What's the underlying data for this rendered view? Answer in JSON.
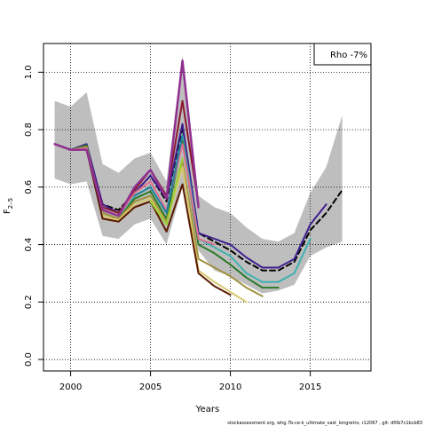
{
  "chart_data": {
    "type": "line",
    "title": "",
    "xlabel": "Years",
    "ylabel": "F2-5",
    "ylabel_main": "F",
    "ylabel_sub": "2–5",
    "xlim": [
      1998.3,
      2018.8
    ],
    "ylim": [
      -0.04,
      1.1
    ],
    "x_ticks": [
      2000,
      2005,
      2010,
      2015
    ],
    "y_ticks": [
      0.0,
      0.2,
      0.4,
      0.6,
      0.8,
      1.0
    ],
    "x_tick_labels": [
      "2000",
      "2005",
      "2010",
      "2015"
    ],
    "y_tick_labels": [
      "0.0",
      "0.2",
      "0.4",
      "0.6",
      "0.8",
      "1.0"
    ],
    "grid": true,
    "legend": {
      "position": "top-right",
      "text": "Rho -7%"
    },
    "footer": "stockassessment.org, whg.7b-ce-k_ultimate_vast_longretro, r12067 , git: df0b7c1bcb83",
    "confidence_band": {
      "x": [
        1999,
        2000,
        2001,
        2002,
        2003,
        2004,
        2005,
        2006,
        2007,
        2008,
        2009,
        2010,
        2011,
        2012,
        2013,
        2014,
        2015,
        2016,
        2017
      ],
      "upper": [
        0.9,
        0.88,
        0.93,
        0.68,
        0.65,
        0.7,
        0.72,
        0.62,
        1.06,
        0.57,
        0.53,
        0.51,
        0.46,
        0.42,
        0.41,
        0.44,
        0.58,
        0.67,
        0.85
      ],
      "lower": [
        0.63,
        0.61,
        0.62,
        0.43,
        0.42,
        0.47,
        0.49,
        0.4,
        0.6,
        0.38,
        0.31,
        0.29,
        0.26,
        0.23,
        0.24,
        0.26,
        0.36,
        0.39,
        0.41
      ],
      "color": "#bebebe"
    },
    "series": [
      {
        "color": "#000000",
        "dashed": true,
        "width": 2,
        "x": [
          1999,
          2000,
          2001,
          2002,
          2003,
          2004,
          2005,
          2006,
          2007,
          2008,
          2009,
          2010,
          2011,
          2012,
          2013,
          2014,
          2015,
          2016,
          2017
        ],
        "y": [
          0.75,
          0.73,
          0.74,
          0.54,
          0.52,
          0.58,
          0.64,
          0.55,
          0.81,
          0.44,
          0.41,
          0.38,
          0.34,
          0.31,
          0.31,
          0.34,
          0.45,
          0.51,
          0.59
        ]
      },
      {
        "color": "#3f1f8f",
        "dashed": false,
        "width": 2,
        "x": [
          1999,
          2000,
          2001,
          2002,
          2003,
          2004,
          2005,
          2006,
          2007,
          2008,
          2009,
          2010,
          2011,
          2012,
          2013,
          2014,
          2015,
          2016
        ],
        "y": [
          0.75,
          0.73,
          0.75,
          0.54,
          0.51,
          0.58,
          0.64,
          0.56,
          0.82,
          0.44,
          0.42,
          0.4,
          0.355,
          0.32,
          0.32,
          0.35,
          0.47,
          0.54
        ]
      },
      {
        "color": "#40b0b0",
        "dashed": false,
        "width": 2,
        "x": [
          1999,
          2000,
          2001,
          2002,
          2003,
          2004,
          2005,
          2006,
          2007,
          2008,
          2009,
          2010,
          2011,
          2012,
          2013,
          2014,
          2015
        ],
        "y": [
          0.75,
          0.73,
          0.74,
          0.52,
          0.5,
          0.57,
          0.6,
          0.51,
          0.78,
          0.42,
          0.39,
          0.36,
          0.3,
          0.27,
          0.27,
          0.3,
          0.42
        ]
      },
      {
        "color": "#2a7a2a",
        "dashed": false,
        "width": 2,
        "x": [
          1999,
          2000,
          2001,
          2002,
          2003,
          2004,
          2005,
          2006,
          2007,
          2008,
          2009,
          2010,
          2011,
          2012,
          2013
        ],
        "y": [
          0.75,
          0.73,
          0.745,
          0.51,
          0.49,
          0.56,
          0.585,
          0.49,
          0.76,
          0.4,
          0.37,
          0.33,
          0.285,
          0.25,
          0.25
        ]
      },
      {
        "color": "#a09040",
        "dashed": false,
        "width": 2,
        "x": [
          1999,
          2000,
          2001,
          2002,
          2003,
          2004,
          2005,
          2006,
          2007,
          2008,
          2009,
          2010,
          2011,
          2012
        ],
        "y": [
          0.75,
          0.73,
          0.74,
          0.51,
          0.49,
          0.55,
          0.57,
          0.48,
          0.69,
          0.35,
          0.32,
          0.29,
          0.25,
          0.22
        ]
      },
      {
        "color": "#d8c870",
        "dashed": false,
        "width": 2,
        "x": [
          1999,
          2000,
          2001,
          2002,
          2003,
          2004,
          2005,
          2006,
          2007,
          2008,
          2009,
          2010,
          2011
        ],
        "y": [
          0.75,
          0.73,
          0.735,
          0.5,
          0.485,
          0.54,
          0.56,
          0.47,
          0.67,
          0.31,
          0.27,
          0.235,
          0.2
        ]
      },
      {
        "color": "#5a1a00",
        "dashed": false,
        "width": 2,
        "x": [
          1999,
          2000,
          2001,
          2002,
          2003,
          2004,
          2005,
          2006,
          2007,
          2008,
          2009,
          2010
        ],
        "y": [
          0.75,
          0.73,
          0.73,
          0.49,
          0.48,
          0.53,
          0.55,
          0.445,
          0.61,
          0.3,
          0.255,
          0.225
        ]
      },
      {
        "color": "#e07090",
        "dashed": false,
        "width": 2,
        "x": [
          1999,
          2000,
          2001,
          2002,
          2003,
          2004,
          2005,
          2006,
          2007,
          2008,
          2009
        ],
        "y": [
          0.75,
          0.73,
          0.735,
          0.52,
          0.5,
          0.58,
          0.62,
          0.52,
          0.75,
          0.42,
          0.4
        ]
      },
      {
        "color": "#8a1830",
        "dashed": false,
        "width": 2,
        "x": [
          1999,
          2000,
          2001,
          2002,
          2003,
          2004,
          2005,
          2006,
          2007,
          2008
        ],
        "y": [
          0.75,
          0.73,
          0.73,
          0.53,
          0.51,
          0.59,
          0.66,
          0.57,
          0.9,
          0.54
        ]
      },
      {
        "color": "#903090",
        "dashed": false,
        "width": 2.5,
        "x": [
          1999,
          2000,
          2001,
          2002,
          2003,
          2004,
          2005,
          2006,
          2007,
          2008
        ],
        "y": [
          0.75,
          0.73,
          0.73,
          0.52,
          0.5,
          0.6,
          0.66,
          0.56,
          1.04,
          0.53
        ]
      },
      {
        "color": "#2080a0",
        "dashed": false,
        "width": 2,
        "x": [
          2004,
          2005,
          2006,
          2007
        ],
        "y": [
          0.57,
          0.6,
          0.51,
          0.78
        ]
      },
      {
        "color": "#9acd32",
        "dashed": false,
        "width": 2,
        "x": [
          2005,
          2006,
          2007
        ],
        "y": [
          0.55,
          0.47,
          0.7
        ]
      }
    ]
  }
}
